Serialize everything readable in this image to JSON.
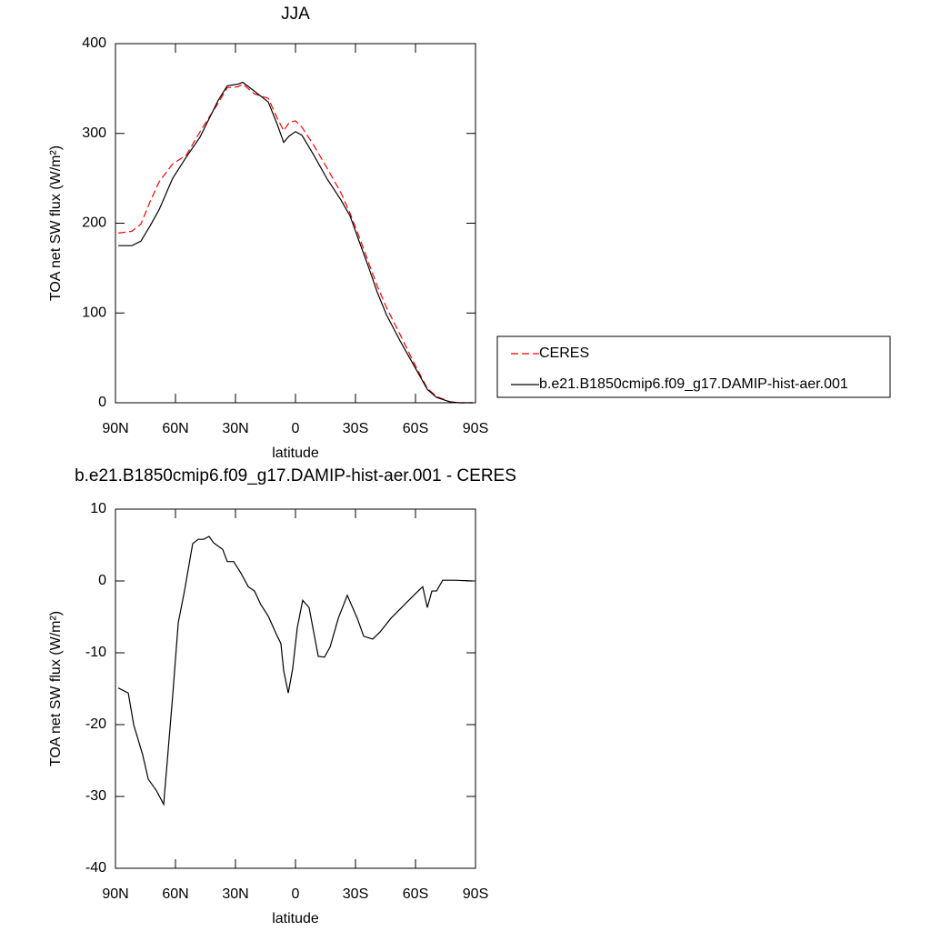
{
  "chart_data": [
    {
      "type": "line",
      "title": "JJA",
      "xlabel": "latitude",
      "ylabel": "TOA net SW flux (W/m²)",
      "x": [
        88.6,
        81.8,
        77.3,
        72.7,
        68.2,
        61.4,
        54.5,
        47.7,
        38.6,
        34.1,
        28.6,
        26.4,
        20.5,
        13.6,
        9.1,
        5.9,
        3.2,
        0,
        -3.2,
        -9.1,
        -15.9,
        -22.7,
        -27.3,
        -31.8,
        -36.4,
        -40.9,
        -45.5,
        -52.3,
        -59.1,
        -65.9,
        -70.5,
        -77.3,
        -81.8,
        -88.6
      ],
      "series": [
        {
          "name": "CERES",
          "color": "#ff0000",
          "line_style": "dashed",
          "values": [
            189,
            191,
            199,
            224,
            246,
            266,
            276,
            302,
            334,
            351,
            352,
            355,
            344,
            339,
            317,
            303,
            312,
            314,
            307,
            287,
            261,
            234,
            211,
            185,
            157,
            130,
            106,
            76,
            45,
            16,
            7,
            1,
            0,
            0
          ]
        },
        {
          "name": "b.e21.B1850cmip6.f09_g17.DAMIP-hist-aer.001",
          "color": "#000000",
          "line_style": "solid",
          "values": [
            175,
            175,
            180,
            197,
            215,
            250,
            274,
            296,
            337,
            353,
            355,
            357,
            347,
            335,
            310,
            290,
            297,
            302,
            298,
            276,
            249,
            226,
            208,
            180,
            152,
            123,
            98,
            69,
            42,
            15,
            6,
            1,
            0,
            0
          ]
        }
      ],
      "xlim": [
        90,
        -90
      ],
      "xticks": [
        {
          "value": 90,
          "label": "90N"
        },
        {
          "value": 60,
          "label": "60N"
        },
        {
          "value": 30,
          "label": "30N"
        },
        0,
        {
          "value": -30,
          "label": "30S"
        },
        {
          "value": -60,
          "label": "60S"
        },
        {
          "value": -90,
          "label": "90S"
        }
      ],
      "ylim": [
        0,
        400
      ],
      "yticks": [
        0,
        100,
        200,
        300,
        400
      ],
      "grid": false,
      "legend": "right"
    },
    {
      "type": "line",
      "title": "b.e21.B1850cmip6.f09_g17.DAMIP-hist-aer.001 - CERES",
      "xlabel": "latitude",
      "ylabel": "TOA net SW flux (W/m²)",
      "x": [
        88.6,
        83.6,
        80.9,
        76.4,
        73.6,
        69.5,
        65.9,
        61.4,
        58.6,
        55.5,
        51.4,
        48.6,
        45.9,
        43.2,
        40.9,
        36.4,
        34.1,
        30.9,
        27.3,
        23.6,
        20.5,
        17.3,
        13.6,
        9.1,
        7.3,
        5.9,
        3.6,
        1.4,
        -0.9,
        -3.6,
        -6.8,
        -11.4,
        -14.5,
        -17.3,
        -21.4,
        -25.9,
        -30.9,
        -34.1,
        -38.6,
        -42.3,
        -47.7,
        -54.5,
        -59.1,
        -63.6,
        -65.9,
        -68.2,
        -70.5,
        -73.6,
        -79.5,
        -88.6
      ],
      "values": [
        -14.9,
        -15.6,
        -20,
        -24.2,
        -27.6,
        -29.2,
        -31.1,
        -16,
        -5.8,
        -1.4,
        5.2,
        5.8,
        5.8,
        6.2,
        5.3,
        4.4,
        2.7,
        2.7,
        1.1,
        -0.8,
        -1.4,
        -3.3,
        -4.9,
        -7.7,
        -8.7,
        -12.5,
        -15.6,
        -12.2,
        -6.5,
        -2.7,
        -3.7,
        -10.5,
        -10.6,
        -9.2,
        -5.2,
        -2,
        -5.2,
        -7.7,
        -8.1,
        -7.1,
        -5.2,
        -3.3,
        -2,
        -0.8,
        -3.7,
        -1.4,
        -1.4,
        0.1,
        0.1,
        0
      ],
      "color": "#000000",
      "xlim": [
        90,
        -90
      ],
      "xticks": [
        {
          "value": 90,
          "label": "90N"
        },
        {
          "value": 60,
          "label": "60N"
        },
        {
          "value": 30,
          "label": "30N"
        },
        0,
        {
          "value": -30,
          "label": "30S"
        },
        {
          "value": -60,
          "label": "60S"
        },
        {
          "value": -90,
          "label": "90S"
        }
      ],
      "ylim": [
        -40,
        10
      ],
      "yticks": [
        -40,
        -30,
        -20,
        -10,
        0,
        10
      ],
      "grid": false
    }
  ]
}
